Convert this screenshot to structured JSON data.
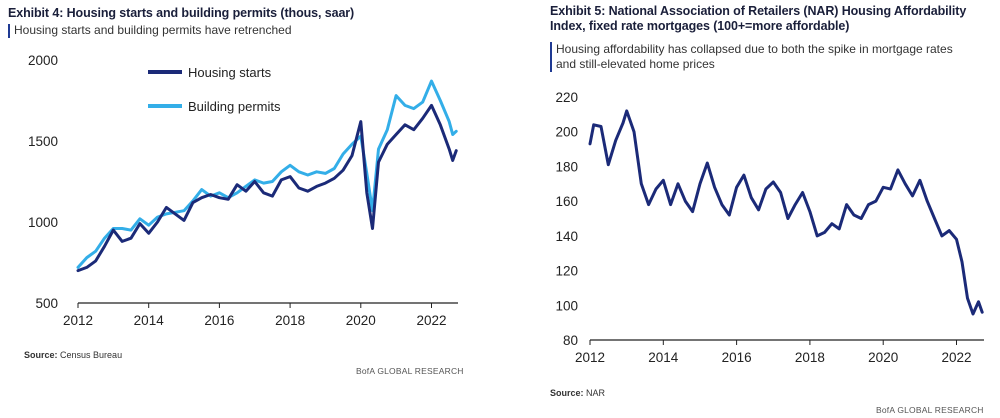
{
  "exhibit4": {
    "title": "Exhibit 4: Housing starts and building permits (thous, saar)",
    "subtitle": "Housing starts and building permits have retrenched",
    "source_label": "Source:",
    "source_text": "Census Bureau",
    "credit": "BofA GLOBAL RESEARCH"
  },
  "exhibit5": {
    "title_line1": "Exhibit 5: National Association of Retailers (NAR) Housing Affordability",
    "title_line2": "Index, fixed rate mortgages (100+=more  affordable)",
    "subtitle_line1": "Housing affordability has collapsed due to both the spike in mortgage rates",
    "subtitle_line2": "and still-elevated home prices",
    "source_label": "Source:",
    "source_text": "NAR",
    "credit": "BofA GLOBAL RESEARCH"
  },
  "colors": {
    "dark_navy": "#1b2a78",
    "light_blue": "#33aee8",
    "axis": "#222222"
  },
  "chart_data": [
    {
      "type": "line",
      "title": "Exhibit 4: Housing starts and building permits (thous, saar)",
      "xlabel": "",
      "ylabel": "thous, saar",
      "xlim": [
        2012,
        2022.75
      ],
      "ylim": [
        500,
        2000
      ],
      "yticks": [
        500,
        1000,
        1500,
        2000
      ],
      "xticks": [
        2012,
        2014,
        2016,
        2018,
        2020,
        2022
      ],
      "legend": "top-left",
      "series": [
        {
          "name": "Housing starts",
          "color": "#1b2a78",
          "x": [
            2012.0,
            2012.25,
            2012.5,
            2012.75,
            2013.0,
            2013.25,
            2013.5,
            2013.75,
            2014.0,
            2014.25,
            2014.5,
            2014.75,
            2015.0,
            2015.25,
            2015.5,
            2015.75,
            2016.0,
            2016.25,
            2016.5,
            2016.75,
            2017.0,
            2017.25,
            2017.5,
            2017.75,
            2018.0,
            2018.25,
            2018.5,
            2018.75,
            2019.0,
            2019.25,
            2019.5,
            2019.75,
            2020.0,
            2020.17,
            2020.33,
            2020.5,
            2020.75,
            2021.0,
            2021.25,
            2021.5,
            2021.75,
            2022.0,
            2022.25,
            2022.5,
            2022.6,
            2022.7
          ],
          "values": [
            700,
            720,
            760,
            850,
            950,
            880,
            900,
            990,
            930,
            1000,
            1090,
            1050,
            1010,
            1120,
            1150,
            1170,
            1150,
            1140,
            1230,
            1190,
            1250,
            1180,
            1160,
            1260,
            1280,
            1210,
            1190,
            1220,
            1240,
            1270,
            1320,
            1410,
            1620,
            1180,
            960,
            1370,
            1480,
            1540,
            1600,
            1570,
            1640,
            1720,
            1600,
            1450,
            1380,
            1440
          ]
        },
        {
          "name": "Building permits",
          "color": "#33aee8",
          "x": [
            2012.0,
            2012.25,
            2012.5,
            2012.75,
            2013.0,
            2013.25,
            2013.5,
            2013.75,
            2014.0,
            2014.25,
            2014.5,
            2014.75,
            2015.0,
            2015.25,
            2015.5,
            2015.75,
            2016.0,
            2016.25,
            2016.5,
            2016.75,
            2017.0,
            2017.25,
            2017.5,
            2017.75,
            2018.0,
            2018.25,
            2018.5,
            2018.75,
            2019.0,
            2019.25,
            2019.5,
            2019.75,
            2020.0,
            2020.17,
            2020.33,
            2020.5,
            2020.75,
            2021.0,
            2021.25,
            2021.5,
            2021.75,
            2022.0,
            2022.25,
            2022.5,
            2022.6,
            2022.7
          ],
          "values": [
            720,
            780,
            820,
            900,
            960,
            960,
            950,
            1020,
            980,
            1030,
            1050,
            1060,
            1070,
            1130,
            1200,
            1160,
            1180,
            1150,
            1180,
            1220,
            1260,
            1240,
            1250,
            1310,
            1350,
            1310,
            1290,
            1310,
            1300,
            1330,
            1420,
            1480,
            1530,
            1300,
            1070,
            1450,
            1570,
            1780,
            1720,
            1700,
            1740,
            1870,
            1750,
            1620,
            1540,
            1560
          ]
        }
      ]
    },
    {
      "type": "line",
      "title": "Exhibit 5: National Association of Retailers (NAR) Housing Affordability Index, fixed rate mortgages (100+=more  affordable)",
      "xlabel": "",
      "ylabel": "Index",
      "xlim": [
        2012,
        2022.75
      ],
      "ylim": [
        80,
        220
      ],
      "yticks": [
        80,
        100,
        120,
        140,
        160,
        180,
        200,
        220
      ],
      "xticks": [
        2012,
        2014,
        2016,
        2018,
        2020,
        2022
      ],
      "legend": "none",
      "series": [
        {
          "name": "Housing Affordability Index",
          "color": "#1b2a78",
          "x": [
            2012.0,
            2012.1,
            2012.3,
            2012.5,
            2012.7,
            2012.9,
            2013.0,
            2013.2,
            2013.4,
            2013.6,
            2013.8,
            2014.0,
            2014.2,
            2014.4,
            2014.6,
            2014.8,
            2015.0,
            2015.2,
            2015.4,
            2015.6,
            2015.8,
            2016.0,
            2016.2,
            2016.4,
            2016.6,
            2016.8,
            2017.0,
            2017.2,
            2017.4,
            2017.6,
            2017.8,
            2018.0,
            2018.2,
            2018.4,
            2018.6,
            2018.8,
            2019.0,
            2019.2,
            2019.4,
            2019.6,
            2019.8,
            2020.0,
            2020.2,
            2020.4,
            2020.6,
            2020.8,
            2021.0,
            2021.2,
            2021.4,
            2021.6,
            2021.8,
            2022.0,
            2022.15,
            2022.3,
            2022.45,
            2022.6,
            2022.7
          ],
          "values": [
            193,
            204,
            203,
            181,
            195,
            205,
            212,
            200,
            170,
            158,
            167,
            172,
            158,
            170,
            160,
            154,
            170,
            182,
            168,
            158,
            152,
            168,
            175,
            162,
            155,
            167,
            171,
            165,
            150,
            158,
            165,
            154,
            140,
            142,
            147,
            144,
            158,
            152,
            150,
            158,
            160,
            168,
            167,
            178,
            170,
            163,
            172,
            160,
            150,
            140,
            143,
            138,
            125,
            104,
            95,
            102,
            96
          ]
        }
      ]
    }
  ]
}
